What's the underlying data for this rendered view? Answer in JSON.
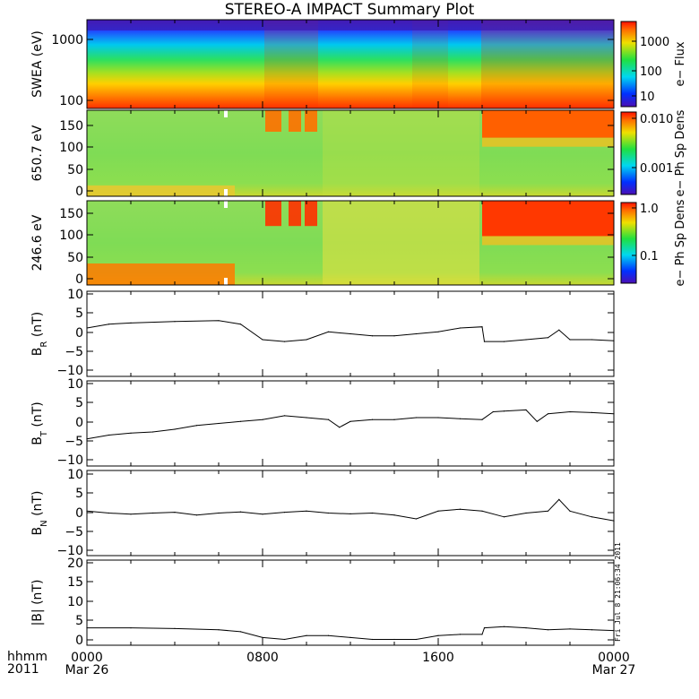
{
  "title": "STEREO-A IMPACT Summary Plot",
  "corner_label": {
    "line1": "hhmm",
    "line2": "2011"
  },
  "stamp": "Fri Jul 8 21:06:34 2011",
  "chart_data": [
    {
      "type": "heatmap",
      "ylabel": "SWEA (eV)",
      "yscale": "log",
      "ylim": [
        90,
        2000
      ],
      "yticks": [
        "1000",
        "100"
      ],
      "colorbar": {
        "label": "e− Flux",
        "scale": "log",
        "ticks": [
          "1000",
          "100",
          "10"
        ]
      }
    },
    {
      "type": "heatmap",
      "ylabel": "650.7 eV",
      "ylim": [
        -5,
        180
      ],
      "yticks": [
        "150",
        "100",
        "50",
        "0"
      ],
      "colorbar": {
        "label": "e− Ph Sp Dens",
        "scale": "log",
        "ticks": [
          "0.010",
          "0.001"
        ]
      }
    },
    {
      "type": "heatmap",
      "ylabel": "246.6 eV",
      "ylim": [
        -5,
        180
      ],
      "yticks": [
        "150",
        "100",
        "50",
        "0"
      ],
      "colorbar": {
        "label": "e− Ph Sp Dens",
        "scale": "log",
        "ticks": [
          "1.0",
          "0.1"
        ]
      }
    },
    {
      "type": "line",
      "ylabel_main": "B",
      "ylabel_sub": "R",
      "ylabel_unit": " (nT)",
      "ylim": [
        -11,
        11
      ],
      "yticks": [
        "10",
        "5",
        "0",
        "−5",
        "−10"
      ],
      "x": [
        0,
        1,
        2,
        4,
        6,
        7,
        8,
        9,
        10,
        11,
        12,
        13,
        14,
        15,
        16,
        17,
        18,
        18.1,
        19,
        20,
        21,
        21.5,
        22,
        23,
        24
      ],
      "y": [
        1.5,
        2.5,
        2.8,
        3.2,
        3.4,
        2.5,
        -1.5,
        -2.0,
        -1.5,
        0.5,
        0,
        -0.5,
        -0.5,
        0,
        0.5,
        1.5,
        1.8,
        -2.0,
        -2.0,
        -1.5,
        -1.0,
        1.0,
        -1.5,
        -1.5,
        -1.8
      ]
    },
    {
      "type": "line",
      "ylabel_main": "B",
      "ylabel_sub": "T",
      "ylabel_unit": " (nT)",
      "ylim": [
        -11,
        11
      ],
      "yticks": [
        "10",
        "5",
        "0",
        "−5",
        "−10"
      ],
      "x": [
        0,
        1,
        2,
        3,
        4,
        5,
        6,
        7,
        8,
        9,
        10,
        11,
        11.5,
        12,
        13,
        14,
        15,
        16,
        17,
        18,
        18.5,
        19,
        20,
        20.5,
        21,
        22,
        23,
        24
      ],
      "y": [
        -4,
        -3,
        -2.5,
        -2.2,
        -1.5,
        -0.5,
        0,
        0.5,
        1.0,
        2.0,
        1.5,
        1.0,
        -1.0,
        0.5,
        1.0,
        1.0,
        1.5,
        1.5,
        1.2,
        1.0,
        3.0,
        3.2,
        3.5,
        0.5,
        2.5,
        3.0,
        2.8,
        2.5
      ]
    },
    {
      "type": "line",
      "ylabel_main": "B",
      "ylabel_sub": "N",
      "ylabel_unit": " (nT)",
      "ylim": [
        -11,
        11
      ],
      "yticks": [
        "10",
        "5",
        "0",
        "−5",
        "−10"
      ],
      "x": [
        0,
        1,
        2,
        3,
        4,
        5,
        6,
        7,
        8,
        9,
        10,
        11,
        12,
        13,
        14,
        15,
        16,
        17,
        18,
        19,
        20,
        21,
        21.5,
        22,
        23,
        24
      ],
      "y": [
        0.5,
        0,
        -0.3,
        0,
        0.2,
        -0.5,
        0,
        0.3,
        -0.3,
        0.2,
        0.5,
        0,
        -0.2,
        0,
        -0.5,
        -1.5,
        0.5,
        1.0,
        0.5,
        -1.0,
        0,
        0.5,
        3.5,
        0.5,
        -1.0,
        -2.0
      ]
    },
    {
      "type": "line",
      "ylabel": "|B| (nT)",
      "ylim": [
        -1,
        21
      ],
      "yticks": [
        "20",
        "15",
        "10",
        "5",
        "0"
      ],
      "x": [
        0,
        2,
        4,
        6,
        7,
        8,
        9,
        10,
        11,
        12,
        13,
        14,
        15,
        16,
        17,
        18,
        18.1,
        19,
        20,
        21,
        22,
        23,
        24
      ],
      "y": [
        3.5,
        3.5,
        3.3,
        3.0,
        2.5,
        1.0,
        0.5,
        1.5,
        1.5,
        1.0,
        0.5,
        0.5,
        0.5,
        1.5,
        1.8,
        1.8,
        3.5,
        3.8,
        3.5,
        3.0,
        3.2,
        3.0,
        2.8
      ]
    }
  ],
  "xaxis": {
    "tick_labels": [
      {
        "x": 0,
        "l1": "0000",
        "l2": "Mar 26"
      },
      {
        "x": 8,
        "l1": "0800",
        "l2": ""
      },
      {
        "x": 16,
        "l1": "1600",
        "l2": ""
      },
      {
        "x": 24,
        "l1": "0000",
        "l2": "Mar 27"
      }
    ]
  }
}
